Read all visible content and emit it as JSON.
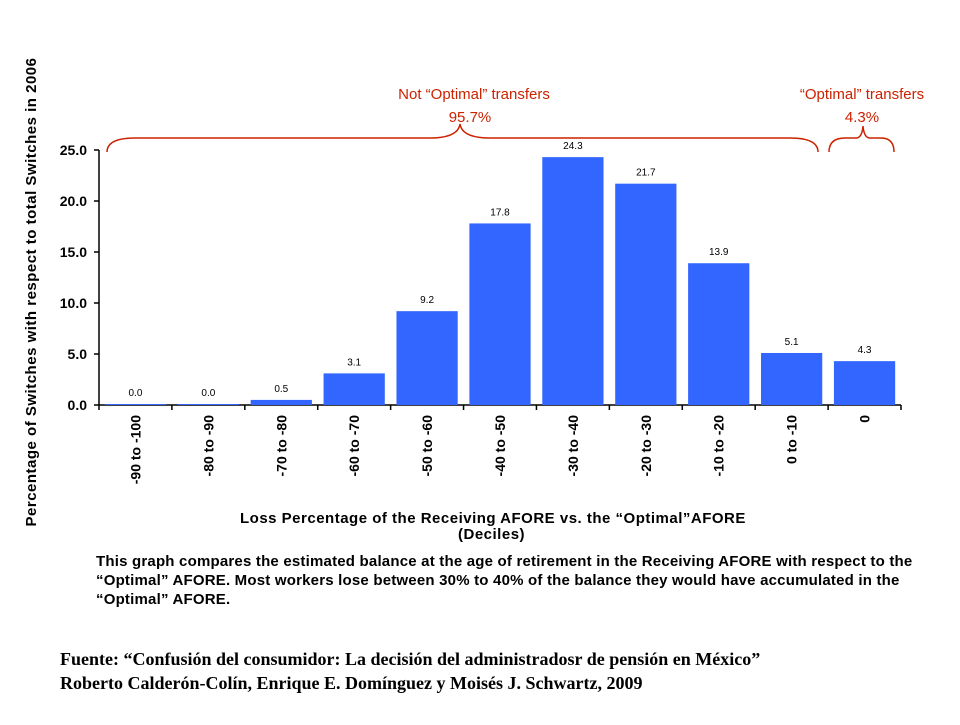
{
  "chart_data": {
    "type": "bar",
    "categories": [
      "-90 to -100",
      "-80 to -90",
      "-70 to -80",
      "-60 to -70",
      "-50 to -60",
      "-40 to -50",
      "-30 to -40",
      "-20 to -30",
      "-10 to -20",
      "0 to -10",
      "0"
    ],
    "values": [
      0.0,
      0.0,
      0.5,
      3.1,
      9.2,
      17.8,
      24.3,
      21.7,
      13.9,
      5.1,
      4.3
    ],
    "data_labels": [
      "0.0",
      "0.0",
      "0.5",
      "3.1",
      "9.2",
      "17.8",
      "24.3",
      "21.7",
      "13.9",
      "5.1",
      "4.3"
    ],
    "ylabel": "Percentage of Switches with respect to total Switches in 2006",
    "xlabel_line1": "Loss Percentage of the Receiving AFORE vs. the “Optimal”AFORE",
    "xlabel_line2": "(Deciles)",
    "ylim": [
      0,
      25
    ],
    "yticks": [
      "0.0",
      "5.0",
      "10.0",
      "15.0",
      "20.0",
      "25.0"
    ],
    "bar_color": "#3366ff",
    "annotation_color": "#cc2200",
    "grid": false,
    "annotations": {
      "not_optimal_label": "Not “Optimal” transfers",
      "not_optimal_pct": "95.7%",
      "optimal_label": "“Optimal” transfers",
      "optimal_pct": "4.3%"
    }
  },
  "caption": "This graph compares the estimated balance at the age of retirement in the Receiving AFORE with respect to the “Optimal” AFORE. Most workers lose between 30% to 40% of the balance they would have accumulated in the “Optimal” AFORE.",
  "source_line1": "Fuente: “Confusión del consumidor: La decisión del administradosr de pensión en México”",
  "source_line2": "Roberto Calderón-Colín, Enrique E. Domínguez y Moisés J. Schwartz, 2009"
}
